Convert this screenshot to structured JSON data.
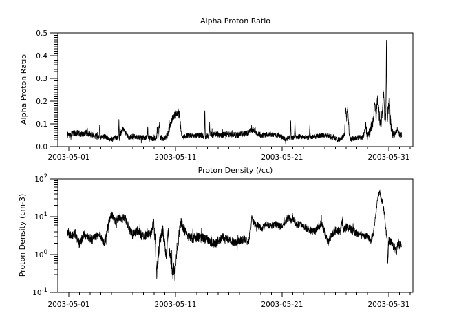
{
  "figure": {
    "background": "#ffffff",
    "foreground": "#000000"
  },
  "chart_data": [
    {
      "type": "line",
      "title": "Alpha Proton Ratio",
      "ylabel": "Alpha Proton Ratio",
      "xlabel": "",
      "yscale": "linear",
      "ylim": [
        0.0,
        0.5
      ],
      "y_major_ticks": [
        0.0,
        0.1,
        0.2,
        0.3,
        0.4,
        0.5
      ],
      "y_tick_labels": [
        "0.0",
        "0.1",
        "0.2",
        "0.3",
        "0.4",
        "0.5"
      ],
      "y_minor_step": 0.01,
      "xlim_days": [
        -1.03,
        32.26
      ],
      "x_major_tick_days": [
        0,
        10,
        20,
        30
      ],
      "x_tick_labels": [
        "2003-05-01",
        "2003-05-11",
        "2003-05-21",
        "2003-05-31"
      ],
      "x_minor_step_days": 1,
      "grid": false,
      "legend": false,
      "line_color": "#000000",
      "series": {
        "name": "alpha-proton-ratio",
        "start_day": -0.15,
        "end_day": 31.2,
        "seed": 12345,
        "clamp": [
          0.01,
          0.49
        ],
        "keyframes": [
          [
            -0.15,
            0.05
          ],
          [
            0.3,
            0.055
          ],
          [
            0.8,
            0.06
          ],
          [
            1.2,
            0.055
          ],
          [
            1.7,
            0.06
          ],
          [
            2.2,
            0.05
          ],
          [
            2.6,
            0.045
          ],
          [
            2.85,
            0.04
          ],
          [
            2.9,
            0.1
          ],
          [
            2.95,
            0.04
          ],
          [
            3.4,
            0.045
          ],
          [
            3.9,
            0.03
          ],
          [
            4.3,
            0.04
          ],
          [
            4.65,
            0.04
          ],
          [
            4.7,
            0.115
          ],
          [
            4.75,
            0.045
          ],
          [
            5.1,
            0.08
          ],
          [
            5.3,
            0.06
          ],
          [
            5.6,
            0.04
          ],
          [
            6.0,
            0.045
          ],
          [
            6.5,
            0.04
          ],
          [
            7.0,
            0.04
          ],
          [
            7.35,
            0.04
          ],
          [
            7.4,
            0.09
          ],
          [
            7.45,
            0.04
          ],
          [
            7.9,
            0.035
          ],
          [
            8.25,
            0.04
          ],
          [
            8.3,
            0.1
          ],
          [
            8.35,
            0.04
          ],
          [
            8.5,
            0.1
          ],
          [
            8.55,
            0.04
          ],
          [
            8.9,
            0.035
          ],
          [
            9.2,
            0.045
          ],
          [
            9.5,
            0.09
          ],
          [
            9.7,
            0.12
          ],
          [
            9.9,
            0.135
          ],
          [
            10.1,
            0.145
          ],
          [
            10.25,
            0.15
          ],
          [
            10.4,
            0.13
          ],
          [
            10.55,
            0.05
          ],
          [
            10.7,
            0.04
          ],
          [
            11.2,
            0.05
          ],
          [
            11.8,
            0.045
          ],
          [
            12.3,
            0.05
          ],
          [
            12.7,
            0.045
          ],
          [
            12.75,
            0.17
          ],
          [
            12.8,
            0.045
          ],
          [
            13.15,
            0.045
          ],
          [
            13.2,
            0.1
          ],
          [
            13.25,
            0.05
          ],
          [
            13.7,
            0.055
          ],
          [
            14.3,
            0.05
          ],
          [
            15.0,
            0.055
          ],
          [
            15.7,
            0.05
          ],
          [
            16.4,
            0.055
          ],
          [
            17.0,
            0.065
          ],
          [
            17.3,
            0.075
          ],
          [
            17.6,
            0.055
          ],
          [
            18.2,
            0.05
          ],
          [
            18.8,
            0.055
          ],
          [
            19.4,
            0.05
          ],
          [
            19.9,
            0.045
          ],
          [
            20.3,
            0.032
          ],
          [
            20.75,
            0.04
          ],
          [
            20.8,
            0.11
          ],
          [
            20.85,
            0.04
          ],
          [
            21.15,
            0.04
          ],
          [
            21.2,
            0.11
          ],
          [
            21.25,
            0.04
          ],
          [
            21.7,
            0.045
          ],
          [
            22.2,
            0.04
          ],
          [
            22.55,
            0.04
          ],
          [
            22.6,
            0.095
          ],
          [
            22.65,
            0.04
          ],
          [
            23.2,
            0.045
          ],
          [
            23.8,
            0.05
          ],
          [
            24.4,
            0.045
          ],
          [
            24.9,
            0.04
          ],
          [
            25.2,
            0.028
          ],
          [
            25.6,
            0.04
          ],
          [
            25.85,
            0.05
          ],
          [
            25.95,
            0.17
          ],
          [
            26.05,
            0.12
          ],
          [
            26.15,
            0.17
          ],
          [
            26.3,
            0.05
          ],
          [
            26.45,
            0.032
          ],
          [
            27.0,
            0.04
          ],
          [
            27.6,
            0.04
          ],
          [
            27.85,
            0.095
          ],
          [
            27.95,
            0.04
          ],
          [
            28.2,
            0.06
          ],
          [
            28.45,
            0.1
          ],
          [
            28.6,
            0.13
          ],
          [
            28.7,
            0.21
          ],
          [
            28.8,
            0.12
          ],
          [
            28.95,
            0.215
          ],
          [
            29.1,
            0.13
          ],
          [
            29.25,
            0.1
          ],
          [
            29.4,
            0.15
          ],
          [
            29.5,
            0.25
          ],
          [
            29.6,
            0.14
          ],
          [
            29.72,
            0.12
          ],
          [
            29.78,
            0.46
          ],
          [
            29.84,
            0.12
          ],
          [
            29.95,
            0.17
          ],
          [
            30.05,
            0.2
          ],
          [
            30.15,
            0.12
          ],
          [
            30.3,
            0.06
          ],
          [
            30.5,
            0.05
          ],
          [
            30.8,
            0.075
          ],
          [
            31.0,
            0.055
          ],
          [
            31.2,
            0.05
          ]
        ],
        "noise_amp": [
          [
            -0.15,
            0.014
          ],
          [
            2.5,
            0.013
          ],
          [
            3.0,
            0.01
          ],
          [
            9.0,
            0.012
          ],
          [
            9.5,
            0.018
          ],
          [
            10.4,
            0.018
          ],
          [
            10.6,
            0.01
          ],
          [
            13.0,
            0.012
          ],
          [
            17.0,
            0.013
          ],
          [
            19.0,
            0.01
          ],
          [
            22.0,
            0.01
          ],
          [
            26.0,
            0.012
          ],
          [
            27.5,
            0.01
          ],
          [
            28.4,
            0.028
          ],
          [
            30.2,
            0.028
          ],
          [
            30.5,
            0.012
          ],
          [
            31.2,
            0.012
          ]
        ]
      }
    },
    {
      "type": "line",
      "title": "Proton Density (/cc)",
      "ylabel": "Proton Density (cm-3)",
      "xlabel": "",
      "yscale": "log",
      "ylim": [
        0.1,
        100
      ],
      "y_major_ticks": [
        0.1,
        1,
        10,
        100
      ],
      "y_tick_labels": [
        {
          "base": "10",
          "exp": "-1"
        },
        {
          "base": "10",
          "exp": "0"
        },
        {
          "base": "10",
          "exp": "1"
        },
        {
          "base": "10",
          "exp": "2"
        }
      ],
      "xlim_days": [
        -1.03,
        32.26
      ],
      "x_major_tick_days": [
        0,
        10,
        20,
        30
      ],
      "x_tick_labels": [
        "2003-05-01",
        "2003-05-11",
        "2003-05-21",
        "2003-05-31"
      ],
      "x_minor_step_days": 1,
      "grid": false,
      "legend": false,
      "line_color": "#000000",
      "series": {
        "name": "proton-density",
        "start_day": -0.15,
        "end_day": 31.2,
        "seed": 777,
        "clamp": [
          0.105,
          95
        ],
        "keyframes": [
          [
            -0.15,
            4.0
          ],
          [
            0.2,
            3.2
          ],
          [
            0.6,
            3.6
          ],
          [
            1.0,
            1.9
          ],
          [
            1.4,
            3.3
          ],
          [
            1.8,
            3.0
          ],
          [
            2.2,
            2.4
          ],
          [
            2.6,
            3.0
          ],
          [
            3.0,
            3.2
          ],
          [
            3.3,
            2.0
          ],
          [
            3.45,
            2.6
          ],
          [
            3.7,
            6.0
          ],
          [
            4.0,
            12
          ],
          [
            4.2,
            9
          ],
          [
            4.4,
            7.5
          ],
          [
            4.6,
            9
          ],
          [
            4.8,
            10
          ],
          [
            5.0,
            8.5
          ],
          [
            5.2,
            10
          ],
          [
            5.45,
            7
          ],
          [
            5.7,
            4.5
          ],
          [
            6.0,
            3.3
          ],
          [
            6.45,
            4.5
          ],
          [
            6.8,
            3.2
          ],
          [
            7.1,
            3.0
          ],
          [
            7.4,
            3.8
          ],
          [
            7.7,
            3.4
          ],
          [
            7.95,
            7.0
          ],
          [
            8.1,
            2.5
          ],
          [
            8.25,
            0.3
          ],
          [
            8.45,
            1.5
          ],
          [
            8.6,
            3.0
          ],
          [
            8.8,
            4.5
          ],
          [
            9.0,
            2.0
          ],
          [
            9.15,
            0.8
          ],
          [
            9.3,
            5.0
          ],
          [
            9.45,
            1.0
          ],
          [
            9.6,
            0.75
          ],
          [
            9.75,
            0.3
          ],
          [
            9.85,
            0.45
          ],
          [
            9.95,
            0.3
          ],
          [
            10.1,
            1.2
          ],
          [
            10.3,
            2.8
          ],
          [
            10.5,
            7.0
          ],
          [
            10.7,
            5.5
          ],
          [
            10.9,
            4.0
          ],
          [
            11.2,
            3.0
          ],
          [
            11.6,
            2.6
          ],
          [
            12.0,
            2.9
          ],
          [
            12.5,
            2.7
          ],
          [
            13.0,
            2.5
          ],
          [
            13.7,
            1.9
          ],
          [
            14.1,
            2.5
          ],
          [
            14.5,
            2.8
          ],
          [
            15.0,
            2.5
          ],
          [
            15.4,
            2.2
          ],
          [
            15.7,
            2.0
          ],
          [
            16.0,
            2.4
          ],
          [
            16.4,
            2.6
          ],
          [
            16.85,
            2.1
          ],
          [
            17.05,
            5.0
          ],
          [
            17.15,
            9.5
          ],
          [
            17.4,
            6.5
          ],
          [
            17.7,
            6.0
          ],
          [
            18.1,
            4.8
          ],
          [
            18.5,
            6.5
          ],
          [
            18.9,
            5.5
          ],
          [
            19.3,
            6.5
          ],
          [
            19.8,
            5.5
          ],
          [
            20.2,
            6.5
          ],
          [
            20.55,
            10.0
          ],
          [
            20.8,
            8.0
          ],
          [
            21.0,
            9.0
          ],
          [
            21.3,
            6.5
          ],
          [
            21.8,
            6.0
          ],
          [
            22.3,
            5.0
          ],
          [
            22.8,
            4.2
          ],
          [
            23.1,
            4.0
          ],
          [
            23.4,
            5.5
          ],
          [
            23.7,
            6.5
          ],
          [
            24.0,
            4.0
          ],
          [
            24.3,
            2.1
          ],
          [
            24.7,
            3.5
          ],
          [
            25.1,
            4.5
          ],
          [
            25.45,
            4.0
          ],
          [
            25.6,
            8.0
          ],
          [
            25.75,
            4.5
          ],
          [
            26.1,
            5.5
          ],
          [
            26.5,
            4.5
          ],
          [
            26.9,
            3.8
          ],
          [
            27.3,
            3.2
          ],
          [
            27.7,
            3.0
          ],
          [
            28.0,
            3.2
          ],
          [
            28.3,
            2.2
          ],
          [
            28.55,
            3.5
          ],
          [
            28.7,
            8.0
          ],
          [
            28.85,
            18
          ],
          [
            29.0,
            35
          ],
          [
            29.15,
            45
          ],
          [
            29.3,
            28
          ],
          [
            29.45,
            24
          ],
          [
            29.55,
            14
          ],
          [
            29.65,
            8.0
          ],
          [
            29.75,
            4.0
          ],
          [
            29.85,
            3.0
          ],
          [
            29.9,
            0.42
          ],
          [
            29.98,
            2.2
          ],
          [
            30.1,
            2.4
          ],
          [
            30.3,
            1.9
          ],
          [
            30.55,
            1.5
          ],
          [
            30.7,
            1.1
          ],
          [
            30.85,
            2.3
          ],
          [
            31.0,
            1.7
          ],
          [
            31.2,
            2.0
          ]
        ],
        "noise_amp": [
          [
            -0.15,
            0.28
          ],
          [
            3.5,
            0.25
          ],
          [
            4.0,
            0.22
          ],
          [
            6.0,
            0.28
          ],
          [
            7.8,
            0.3
          ],
          [
            8.2,
            0.42
          ],
          [
            10.2,
            0.4
          ],
          [
            11.0,
            0.3
          ],
          [
            13.0,
            0.28
          ],
          [
            16.8,
            0.25
          ],
          [
            17.2,
            0.2
          ],
          [
            21.0,
            0.22
          ],
          [
            27.0,
            0.25
          ],
          [
            28.8,
            0.18
          ],
          [
            29.6,
            0.2
          ],
          [
            30.2,
            0.3
          ],
          [
            31.2,
            0.28
          ]
        ]
      }
    }
  ]
}
